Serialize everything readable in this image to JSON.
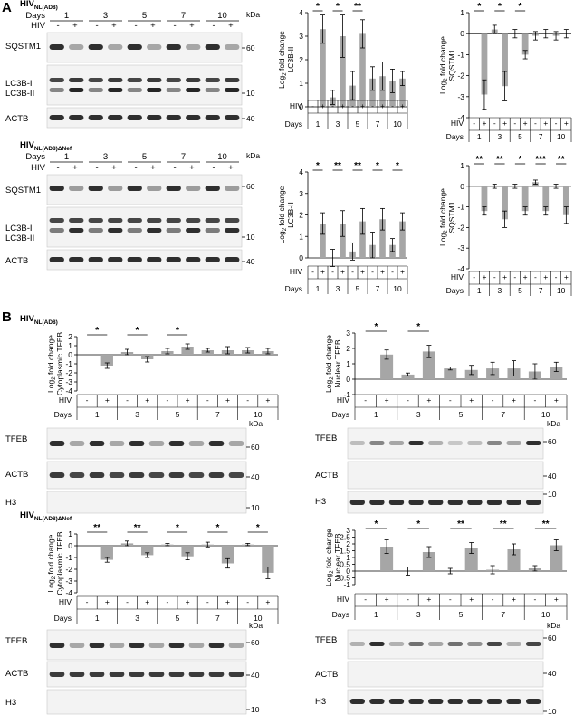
{
  "panel_A": {
    "letter": "A",
    "strain1": {
      "title_main": "HIV",
      "title_sub": "NL(AD8)"
    },
    "strain2": {
      "title_main": "HIV",
      "title_sub": "NL(AD8)ΔNef"
    },
    "days_label": "Days",
    "hiv_label": "HIV",
    "kda_label": "kDa",
    "days": [
      "1",
      "3",
      "5",
      "7",
      "10"
    ],
    "hiv_signs": [
      "-",
      "+"
    ],
    "blot_labels": {
      "sqstm1": "SQSTM1",
      "lc3b1": "LC3B-I",
      "lc3b2": "LC3B-II",
      "actb": "ACTB"
    },
    "markers": {
      "m60": "60",
      "m10": "10",
      "m40": "40"
    }
  },
  "panel_B": {
    "letter": "B",
    "strain1": {
      "title_main": "HIV",
      "title_sub": "NL(AD8)"
    },
    "strain2": {
      "title_main": "HIV",
      "title_sub": "NL(AD8)ΔNef"
    },
    "blot_labels": {
      "tfeb": "TFEB",
      "actb": "ACTB",
      "h3": "H3"
    },
    "markers": {
      "m60": "60",
      "m40": "40",
      "m10": "10"
    }
  },
  "chart_data": [
    {
      "id": "A1",
      "type": "bar",
      "ylabel": "Log2 fold change LC3B-II",
      "ylim": [
        0,
        4
      ],
      "yticks": [
        0,
        1,
        2,
        3,
        4
      ],
      "categories": [
        "1-",
        "1+",
        "3-",
        "3+",
        "5-",
        "5+",
        "7-",
        "7+",
        "10-",
        "10+"
      ],
      "values": [
        0.0,
        3.3,
        0.4,
        3.0,
        0.9,
        3.1,
        1.2,
        1.3,
        1.1,
        1.2
      ],
      "errors": [
        0.0,
        0.6,
        0.3,
        0.9,
        0.6,
        0.6,
        0.5,
        0.6,
        0.5,
        0.3
      ],
      "significance": [
        {
          "day": "1",
          "label": "*"
        },
        {
          "day": "3",
          "label": "*"
        },
        {
          "day": "5",
          "label": "**"
        }
      ]
    },
    {
      "id": "A2",
      "type": "bar",
      "ylabel": "Log2 fold change SQSTM1",
      "ylim": [
        -4,
        1
      ],
      "yticks": [
        -4,
        -3,
        -2,
        -1,
        0,
        1
      ],
      "categories": [
        "1-",
        "1+",
        "3-",
        "3+",
        "5-",
        "5+",
        "7-",
        "7+",
        "10-",
        "10+"
      ],
      "values": [
        0.0,
        -2.9,
        0.2,
        -2.5,
        0.0,
        -1.0,
        -0.1,
        0.0,
        -0.1,
        0.0
      ],
      "errors": [
        0.0,
        0.7,
        0.2,
        0.7,
        0.2,
        0.2,
        0.2,
        0.2,
        0.2,
        0.2
      ],
      "significance": [
        {
          "day": "1",
          "label": "*"
        },
        {
          "day": "3",
          "label": "*"
        },
        {
          "day": "5",
          "label": "*"
        }
      ]
    },
    {
      "id": "A3",
      "type": "bar",
      "ylabel": "Log2 fold change LC3B-II",
      "ylim": [
        0,
        4
      ],
      "yticks": [
        0,
        1,
        2,
        3,
        4
      ],
      "categories": [
        "1-",
        "1+",
        "3-",
        "3+",
        "5-",
        "5+",
        "7-",
        "7+",
        "10-",
        "10+"
      ],
      "values": [
        0.0,
        1.6,
        0.0,
        1.6,
        0.3,
        1.7,
        0.6,
        1.8,
        0.6,
        1.7
      ],
      "errors": [
        0.0,
        0.5,
        0.4,
        0.6,
        0.4,
        0.6,
        0.6,
        0.5,
        0.3,
        0.4
      ],
      "significance": [
        {
          "day": "1",
          "label": "*"
        },
        {
          "day": "3",
          "label": "**"
        },
        {
          "day": "5",
          "label": "**"
        },
        {
          "day": "7",
          "label": "*"
        },
        {
          "day": "10",
          "label": "*"
        }
      ]
    },
    {
      "id": "A4",
      "type": "bar",
      "ylabel": "Log2 fold change SQSTM1",
      "ylim": [
        -4,
        1
      ],
      "yticks": [
        -4,
        -3,
        -2,
        -1,
        0,
        1
      ],
      "categories": [
        "1-",
        "1+",
        "3-",
        "3+",
        "5-",
        "5+",
        "7-",
        "7+",
        "10-",
        "10+"
      ],
      "values": [
        0.0,
        -1.2,
        0.0,
        -1.6,
        0.0,
        -1.2,
        0.2,
        -1.2,
        0.0,
        -1.4
      ],
      "errors": [
        0.0,
        0.2,
        0.1,
        0.4,
        0.1,
        0.2,
        0.1,
        0.2,
        0.1,
        0.4
      ],
      "significance": [
        {
          "day": "1",
          "label": "**"
        },
        {
          "day": "3",
          "label": "**"
        },
        {
          "day": "5",
          "label": "*"
        },
        {
          "day": "7",
          "label": "***"
        },
        {
          "day": "10",
          "label": "**"
        }
      ]
    },
    {
      "id": "B1",
      "type": "bar",
      "ylabel": "Log2 fold change Cytoplasmic TFEB",
      "ylim": [
        -4,
        2
      ],
      "yticks": [
        -4,
        -3,
        -2,
        -1,
        0,
        1,
        2
      ],
      "categories": [
        "1-",
        "1+",
        "3-",
        "3+",
        "5-",
        "5+",
        "7-",
        "7+",
        "10-",
        "10+"
      ],
      "values": [
        0.0,
        -1.2,
        0.3,
        -0.5,
        0.4,
        0.9,
        0.5,
        0.5,
        0.5,
        0.4
      ],
      "errors": [
        0.0,
        0.3,
        0.3,
        0.3,
        0.3,
        0.3,
        0.2,
        0.4,
        0.3,
        0.3
      ],
      "significance": [
        {
          "day": "1",
          "label": "*"
        },
        {
          "day": "3",
          "label": "*"
        },
        {
          "day": "5",
          "label": "*"
        }
      ]
    },
    {
      "id": "B2",
      "type": "bar",
      "ylabel": "Log2 fold change Nuclear TFEB",
      "ylim": [
        -1,
        3
      ],
      "yticks": [
        -1,
        0,
        1,
        2,
        3
      ],
      "categories": [
        "1-",
        "1+",
        "3-",
        "3+",
        "5-",
        "5+",
        "7-",
        "7+",
        "10-",
        "10+"
      ],
      "values": [
        0.0,
        1.6,
        0.3,
        1.8,
        0.7,
        0.6,
        0.7,
        0.7,
        0.5,
        0.8
      ],
      "errors": [
        0.0,
        0.3,
        0.1,
        0.4,
        0.1,
        0.3,
        0.4,
        0.5,
        0.5,
        0.3
      ],
      "significance": [
        {
          "day": "1",
          "label": "*"
        },
        {
          "day": "3",
          "label": "*"
        }
      ]
    },
    {
      "id": "B3",
      "type": "bar",
      "ylabel": "Log2 fold change Cytoplasmic TFEB",
      "ylim": [
        -4,
        1
      ],
      "yticks": [
        -4,
        -3,
        -2,
        -1,
        0,
        1
      ],
      "categories": [
        "1-",
        "1+",
        "3-",
        "3+",
        "5-",
        "5+",
        "7-",
        "7+",
        "10-",
        "10+"
      ],
      "values": [
        0.0,
        -1.2,
        0.2,
        -0.8,
        0.1,
        -0.9,
        0.1,
        -1.5,
        0.1,
        -2.3
      ],
      "errors": [
        0.0,
        0.2,
        0.2,
        0.2,
        0.1,
        0.3,
        0.2,
        0.4,
        0.1,
        0.5
      ],
      "significance": [
        {
          "day": "1",
          "label": "**"
        },
        {
          "day": "3",
          "label": "**"
        },
        {
          "day": "5",
          "label": "*"
        },
        {
          "day": "7",
          "label": "*"
        },
        {
          "day": "10",
          "label": "*"
        }
      ]
    },
    {
      "id": "B4",
      "type": "bar",
      "ylabel": "Log2 fold change Nuclear TFEB",
      "ylim": [
        -1,
        3
      ],
      "yticks": [
        -1,
        -0.5,
        0,
        0.5,
        1,
        1.5,
        2,
        2.5,
        3
      ],
      "categories": [
        "1-",
        "1+",
        "3-",
        "3+",
        "5-",
        "5+",
        "7-",
        "7+",
        "10-",
        "10+"
      ],
      "values": [
        0.0,
        1.8,
        0.0,
        1.4,
        0.0,
        1.7,
        0.1,
        1.6,
        0.2,
        1.9
      ],
      "errors": [
        0.0,
        0.5,
        0.3,
        0.4,
        0.2,
        0.4,
        0.3,
        0.4,
        0.2,
        0.4
      ],
      "significance": [
        {
          "day": "1",
          "label": "*"
        },
        {
          "day": "3",
          "label": "*"
        },
        {
          "day": "5",
          "label": "**"
        },
        {
          "day": "7",
          "label": "**"
        },
        {
          "day": "10",
          "label": "**"
        }
      ]
    }
  ]
}
